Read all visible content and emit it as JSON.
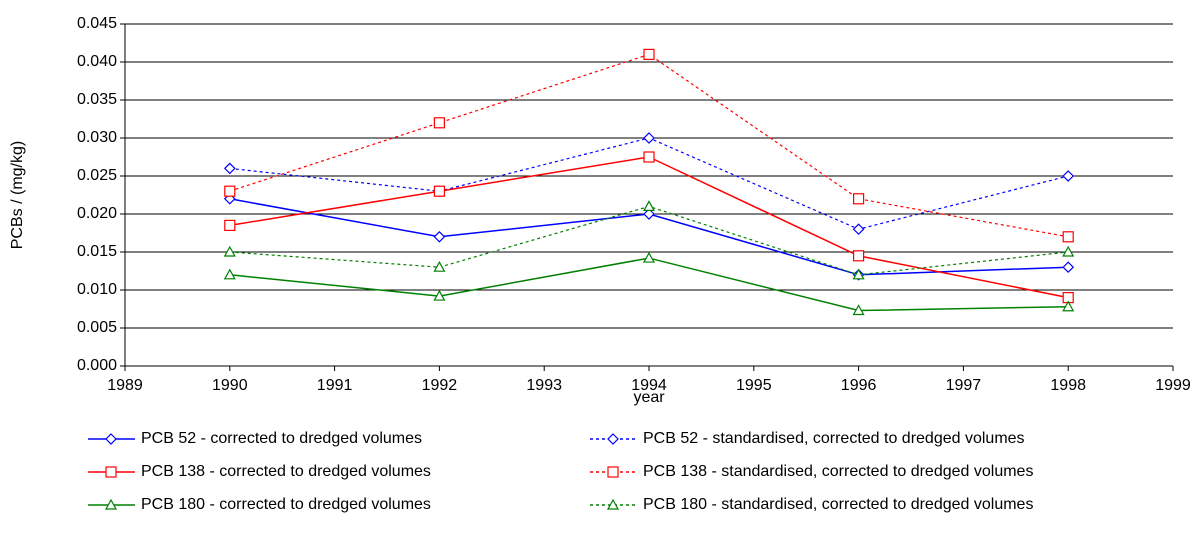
{
  "chart_data": {
    "type": "line",
    "x_label": "year",
    "y_label": "PCBs / (mg/kg)",
    "xlim": [
      1989,
      1999
    ],
    "xticks": [
      1989,
      1990,
      1991,
      1992,
      1993,
      1994,
      1995,
      1996,
      1997,
      1998,
      1999
    ],
    "ylim": [
      0,
      0.045
    ],
    "yticks": [
      {
        "value": 0,
        "label": "0.000"
      },
      {
        "value": 0.005,
        "label": "0.005"
      },
      {
        "value": 0.01,
        "label": "0.010"
      },
      {
        "value": 0.015,
        "label": "0.015"
      },
      {
        "value": 0.02,
        "label": "0.020"
      },
      {
        "value": 0.025,
        "label": "0.025"
      },
      {
        "value": 0.03,
        "label": "0.030"
      },
      {
        "value": 0.035,
        "label": "0.035"
      },
      {
        "value": 0.04,
        "label": "0.040"
      },
      {
        "value": 0.045,
        "label": "0.045"
      }
    ],
    "grid": true,
    "x": [
      1990,
      1992,
      1994,
      1996,
      1998
    ],
    "series": [
      {
        "name": "PCB 52 - corrected to dredged volumes",
        "color": "#0000ff",
        "dashed": false,
        "marker": "diamond",
        "values": [
          0.022,
          0.017,
          0.02,
          0.012,
          0.013
        ]
      },
      {
        "name": "PCB 52 - standardised, corrected to dredged volumes",
        "color": "#0000ff",
        "dashed": true,
        "marker": "diamond",
        "values": [
          0.026,
          0.023,
          0.03,
          0.018,
          0.025
        ]
      },
      {
        "name": "PCB 138 - corrected to dredged volumes",
        "color": "#ff0000",
        "dashed": false,
        "marker": "square",
        "values": [
          0.0185,
          0.023,
          0.0275,
          0.0145,
          0.009
        ]
      },
      {
        "name": "PCB 138 - standardised, corrected to dredged volumes",
        "color": "#ff0000",
        "dashed": true,
        "marker": "square",
        "values": [
          0.023,
          0.032,
          0.041,
          0.022,
          0.017
        ]
      },
      {
        "name": "PCB 180 - corrected to dredged volumes",
        "color": "#008000",
        "dashed": false,
        "marker": "triangle",
        "values": [
          0.012,
          0.0092,
          0.0142,
          0.0073,
          0.0078
        ]
      },
      {
        "name": "PCB 180 - standardised, corrected to dredged volumes",
        "color": "#008000",
        "dashed": true,
        "marker": "triangle",
        "values": [
          0.015,
          0.013,
          0.021,
          0.012,
          0.015
        ]
      }
    ]
  }
}
